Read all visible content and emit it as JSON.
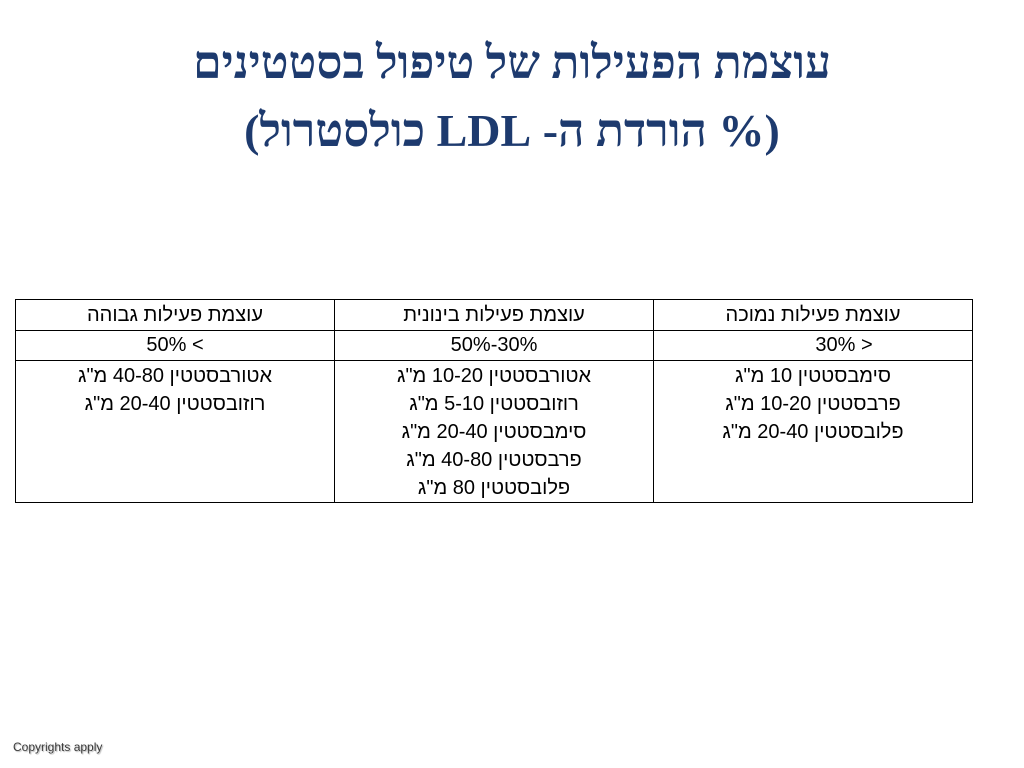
{
  "slide": {
    "title_line1": "עוצמת הפעילות של טיפול בסטטינים",
    "title_line2": "(% הורדת ה- LDL כולסטרול)"
  },
  "table": {
    "headers": [
      "עוצמת פעילות נמוכה",
      "עוצמת פעילות בינונית",
      "עוצמת פעילות גבוהה"
    ],
    "ranges": [
      "< 30%",
      "30%-50%",
      "> 50%"
    ],
    "drugs": [
      [
        "סימבסטטין 10 מ\"ג",
        "פרבסטטין 10-20 מ\"ג",
        "פלובסטטין 20-40 מ\"ג"
      ],
      [
        "אטורבסטטין 10-20 מ\"ג",
        "רוזובסטטין 5-10 מ\"ג",
        "סימבסטטין 20-40 מ\"ג",
        "פרבסטטין 40-80 מ\"ג",
        "פלובסטטין 80 מ\"ג"
      ],
      [
        "אטורבסטטין 40-80 מ\"ג",
        "רוזובסטטין 20-40 מ\"ג"
      ]
    ]
  },
  "colors": {
    "title": "#1d3a6e",
    "table_border": "#000000",
    "background": "#ffffff"
  },
  "footer": {
    "copyright": "Copyrights apply"
  }
}
